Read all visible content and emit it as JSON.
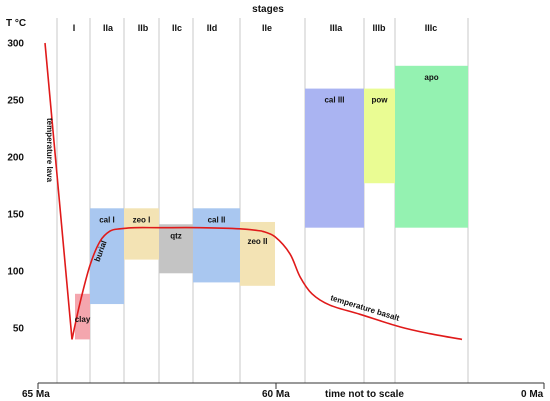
{
  "chart_data": {
    "type": "area",
    "title": "stages",
    "ylabel": "T °C",
    "ylim": [
      0,
      300
    ],
    "yticks": [
      50,
      100,
      150,
      200,
      250,
      300
    ],
    "x_start_label": "65 Ma",
    "x_mid_label": "60 Ma",
    "x_end_label": "0 Ma",
    "x_note": "time not to scale",
    "stages": [
      "I",
      "IIa",
      "IIb",
      "IIc",
      "IId",
      "IIe",
      "IIIa",
      "IIIb",
      "IIIc"
    ],
    "mineral_ranges": [
      {
        "label": "clay",
        "x_from": 75,
        "x_to": 90,
        "t_min": 40,
        "t_max": 80,
        "color": "#f4a6ae"
      },
      {
        "label": "cal I",
        "x_from": 90,
        "x_to": 124,
        "t_min": 71,
        "t_max": 155,
        "color": "#a9c7f0"
      },
      {
        "label": "zeo I",
        "x_from": 124,
        "x_to": 159,
        "t_min": 110,
        "t_max": 155,
        "color": "#f3e3b4"
      },
      {
        "label": "qtz",
        "x_from": 159,
        "x_to": 193,
        "t_min": 98,
        "t_max": 141,
        "color": "#c4c4c4"
      },
      {
        "label": "cal II",
        "x_from": 193,
        "x_to": 240,
        "t_min": 90,
        "t_max": 155,
        "color": "#a9c7f0"
      },
      {
        "label": "zeo II",
        "x_from": 240,
        "x_to": 275,
        "t_min": 87,
        "t_max": 143,
        "color": "#f3e3b4"
      },
      {
        "label": "cal III",
        "x_from": 305,
        "x_to": 364,
        "t_min": 138,
        "t_max": 260,
        "color": "#aab4f2"
      },
      {
        "label": "pow",
        "x_from": 364,
        "x_to": 395,
        "t_min": 177,
        "t_max": 260,
        "color": "#eafc93"
      },
      {
        "label": "apo",
        "x_from": 395,
        "x_to": 468,
        "t_min": 138,
        "t_max": 280,
        "color": "#94f2b1"
      }
    ],
    "series": [
      {
        "name": "temperature lava",
        "color": "#e01a1a",
        "x": [
          45,
          72
        ],
        "y": [
          300,
          40
        ]
      },
      {
        "name": "burial",
        "color": "#e01a1a",
        "x": [
          72,
          80,
          90,
          100,
          110,
          120,
          135,
          160,
          200,
          240,
          262
        ],
        "y": [
          40,
          72,
          105,
          126,
          135,
          137,
          138,
          138,
          138,
          137,
          135
        ]
      },
      {
        "name": "temperature basalt",
        "color": "#e01a1a",
        "x": [
          262,
          275,
          290,
          300,
          312,
          330,
          360,
          400,
          430,
          462
        ],
        "y": [
          135,
          130,
          115,
          95,
          80,
          70,
          62,
          51,
          45,
          40
        ]
      }
    ]
  }
}
